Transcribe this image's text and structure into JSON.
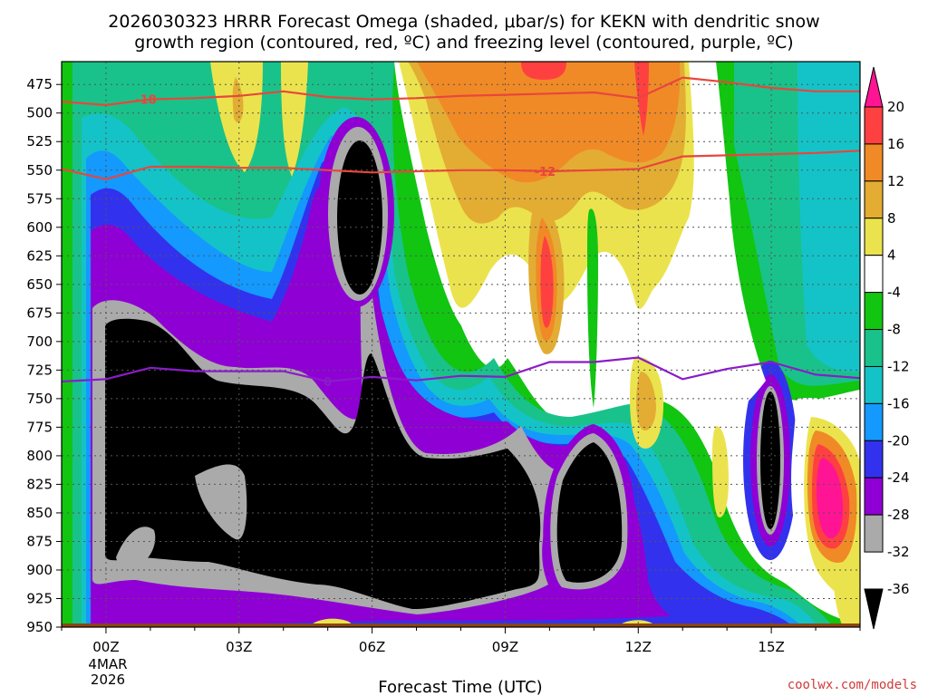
{
  "title": {
    "line1": "2026030323 HRRR Forecast Omega (shaded, μbar/s) for KEKN with dendritic snow",
    "line2": "growth region (contoured, red, ºC) and freezing level (contoured, purple, ºC)"
  },
  "credit": "coolwx.com/models",
  "chart_data": {
    "type": "heatmap",
    "title": "2026030323 HRRR Forecast Omega (shaded, μbar/s) for KEKN with dendritic snow growth region (contoured, red, ºC) and freezing level (contoured, purple, ºC)",
    "xlabel": "Forecast Time (UTC)",
    "ylabel": "",
    "x_ticks": [
      "00Z",
      "03Z",
      "06Z",
      "09Z",
      "12Z",
      "15Z"
    ],
    "x_tick_hours": [
      0,
      3,
      6,
      9,
      12,
      15
    ],
    "x_date_label": [
      "4MAR",
      "2026"
    ],
    "xlim": [
      -1,
      17
    ],
    "y_ticks": [
      475,
      500,
      525,
      550,
      575,
      600,
      625,
      650,
      675,
      700,
      725,
      750,
      775,
      800,
      825,
      850,
      875,
      900,
      925,
      950
    ],
    "ylim": [
      950,
      455
    ],
    "grid": true,
    "colorbar": {
      "labels": [
        "20",
        "16",
        "12",
        "8",
        "4",
        "-4",
        "-8",
        "-12",
        "-16",
        "-20",
        "-24",
        "-28",
        "-32",
        "-36"
      ],
      "colors": [
        "#ff1493",
        "#ff4040",
        "#f08a26",
        "#e3ad33",
        "#ebe34d",
        "#ffffff",
        "#11c511",
        "#19c28a",
        "#14c3c8",
        "#1499ff",
        "#3232ee",
        "#8f00d4",
        "#aaaaaa",
        "#000000"
      ]
    },
    "contours": [
      {
        "name": "-18",
        "color": "#e8463c",
        "label_hour": 0.9,
        "points": [
          [
            -1,
            490
          ],
          [
            0,
            493
          ],
          [
            1,
            488
          ],
          [
            2,
            487
          ],
          [
            3,
            485
          ],
          [
            4,
            481
          ],
          [
            5,
            486
          ],
          [
            6,
            488
          ],
          [
            7,
            487
          ],
          [
            8,
            485
          ],
          [
            9,
            484
          ],
          [
            10,
            483
          ],
          [
            11,
            482
          ],
          [
            12,
            487
          ],
          [
            13,
            469
          ],
          [
            14,
            473
          ],
          [
            15,
            478
          ],
          [
            16,
            481
          ],
          [
            17,
            481
          ]
        ]
      },
      {
        "name": "-12",
        "color": "#e8463c",
        "label_hour": 9.9,
        "points": [
          [
            -1,
            549
          ],
          [
            0,
            558
          ],
          [
            1,
            547
          ],
          [
            2,
            547
          ],
          [
            3,
            548
          ],
          [
            4,
            548
          ],
          [
            5,
            550
          ],
          [
            6,
            552
          ],
          [
            7,
            551
          ],
          [
            8,
            550
          ],
          [
            9,
            550
          ],
          [
            10,
            551
          ],
          [
            11,
            550
          ],
          [
            12,
            549
          ],
          [
            13,
            538
          ],
          [
            14,
            537
          ],
          [
            15,
            536
          ],
          [
            16,
            535
          ],
          [
            17,
            533
          ]
        ]
      },
      {
        "name": "0",
        "color": "#8a1cc8",
        "label_hour": 5.0,
        "points": [
          [
            -1,
            735
          ],
          [
            0,
            733
          ],
          [
            1,
            723
          ],
          [
            2,
            726
          ],
          [
            3,
            726
          ],
          [
            4,
            726
          ],
          [
            5,
            735
          ],
          [
            6,
            731
          ],
          [
            7,
            734
          ],
          [
            8,
            730
          ],
          [
            9,
            731
          ],
          [
            10,
            718
          ],
          [
            11,
            718
          ],
          [
            12,
            714
          ],
          [
            13,
            733
          ],
          [
            14,
            724
          ],
          [
            15,
            718
          ],
          [
            16,
            729
          ],
          [
            17,
            732
          ]
        ]
      }
    ],
    "regions": [
      {
        "value": "<-36",
        "desc": "strong ascent",
        "hours": [
          0,
          11
        ],
        "p": [
          640,
          920
        ]
      },
      {
        "value": ">20",
        "desc": "strong descent",
        "hours": [
          15.5,
          16.8
        ],
        "p": [
          775,
          885
        ]
      }
    ]
  }
}
